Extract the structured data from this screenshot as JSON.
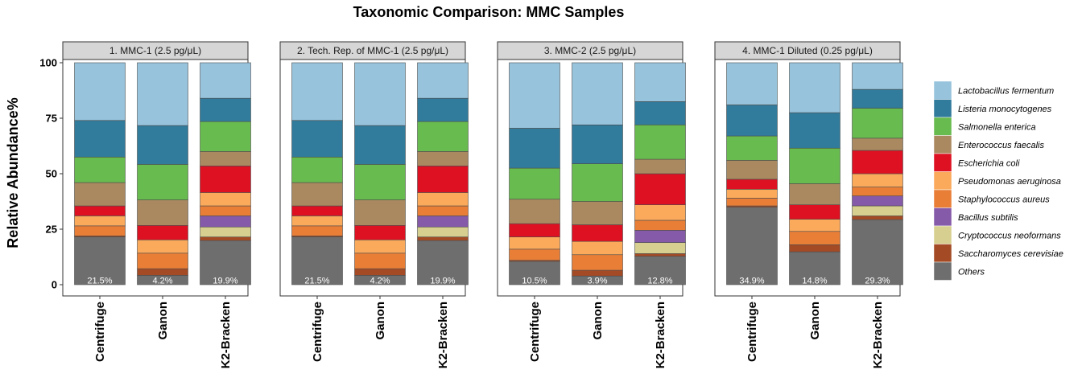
{
  "chart_data": {
    "type": "bar",
    "stacked": true,
    "title": "Taxonomic Comparison: MMC Samples",
    "ylabel": "Relative Abundance%",
    "xlabel": "",
    "ylim": [
      0,
      100
    ],
    "yticks": [
      0,
      25,
      50,
      75,
      100
    ],
    "grid": false,
    "legend_position": "right",
    "categories": [
      "Centrifuge",
      "Ganon",
      "K2-Bracken"
    ],
    "series_names": [
      "Lactobacillus fermentum",
      "Listeria monocytogenes",
      "Salmonella enterica",
      "Enterococcus faecalis",
      "Escherichia coli",
      "Pseudomonas aeruginosa",
      "Staphylococcus aureus",
      "Bacillus subtilis",
      "Cryptococcus neoformans",
      "Saccharomyces cerevisiae",
      "Others"
    ],
    "colors": {
      "Lactobacillus fermentum": "#97c3dc",
      "Listeria monocytogenes": "#317b9c",
      "Salmonella enterica": "#68bb4e",
      "Enterococcus faecalis": "#aa8960",
      "Escherichia coli": "#dd1122",
      "Pseudomonas aeruginosa": "#fba95a",
      "Staphylococcus aureus": "#e97e37",
      "Bacillus subtilis": "#855aa9",
      "Cryptococcus neoformans": "#d7cf8f",
      "Saccharomyces cerevisiae": "#a44b25",
      "Others": "#6e6e6e"
    },
    "panels": [
      {
        "strip": "1. MMC-1 (2.5 pg/μL)",
        "bars": [
          {
            "label": "Centrifuge",
            "others_label": "21.5%",
            "values": {
              "Others": 21.5,
              "Saccharomyces cerevisiae": 0.5,
              "Cryptococcus neoformans": 0,
              "Bacillus subtilis": 0,
              "Staphylococcus aureus": 4.5,
              "Pseudomonas aeruginosa": 4.5,
              "Escherichia coli": 4.5,
              "Enterococcus faecalis": 10.5,
              "Salmonella enterica": 11.5,
              "Listeria monocytogenes": 16.5,
              "Lactobacillus fermentum": 26
            }
          },
          {
            "label": "Ganon",
            "others_label": "4.2%",
            "values": {
              "Others": 4.2,
              "Saccharomyces cerevisiae": 3,
              "Cryptococcus neoformans": 0,
              "Bacillus subtilis": 0,
              "Staphylococcus aureus": 7,
              "Pseudomonas aeruginosa": 6,
              "Escherichia coli": 6.5,
              "Enterococcus faecalis": 11.5,
              "Salmonella enterica": 16,
              "Listeria monocytogenes": 17.5,
              "Lactobacillus fermentum": 28.3
            }
          },
          {
            "label": "K2-Bracken",
            "others_label": "19.9%",
            "values": {
              "Others": 19.9,
              "Saccharomyces cerevisiae": 1.6,
              "Cryptococcus neoformans": 4.5,
              "Bacillus subtilis": 5,
              "Staphylococcus aureus": 4.5,
              "Pseudomonas aeruginosa": 6,
              "Escherichia coli": 12,
              "Enterococcus faecalis": 6.5,
              "Salmonella enterica": 13.5,
              "Listeria monocytogenes": 10.5,
              "Lactobacillus fermentum": 16
            }
          }
        ]
      },
      {
        "strip": "2. Tech. Rep. of MMC-1 (2.5 pg/μL)",
        "bars": [
          {
            "label": "Centrifuge",
            "others_label": "21.5%",
            "values": {
              "Others": 21.5,
              "Saccharomyces cerevisiae": 0.5,
              "Cryptococcus neoformans": 0,
              "Bacillus subtilis": 0,
              "Staphylococcus aureus": 4.5,
              "Pseudomonas aeruginosa": 4.5,
              "Escherichia coli": 4.5,
              "Enterococcus faecalis": 10.5,
              "Salmonella enterica": 11.5,
              "Listeria monocytogenes": 16.5,
              "Lactobacillus fermentum": 26
            }
          },
          {
            "label": "Ganon",
            "others_label": "4.2%",
            "values": {
              "Others": 4.2,
              "Saccharomyces cerevisiae": 3,
              "Cryptococcus neoformans": 0,
              "Bacillus subtilis": 0,
              "Staphylococcus aureus": 7,
              "Pseudomonas aeruginosa": 6,
              "Escherichia coli": 6.5,
              "Enterococcus faecalis": 11.5,
              "Salmonella enterica": 16,
              "Listeria monocytogenes": 17.5,
              "Lactobacillus fermentum": 28.3
            }
          },
          {
            "label": "K2-Bracken",
            "others_label": "19.9%",
            "values": {
              "Others": 19.9,
              "Saccharomyces cerevisiae": 1.6,
              "Cryptococcus neoformans": 4.5,
              "Bacillus subtilis": 5,
              "Staphylococcus aureus": 4.5,
              "Pseudomonas aeruginosa": 6,
              "Escherichia coli": 12,
              "Enterococcus faecalis": 6.5,
              "Salmonella enterica": 13.5,
              "Listeria monocytogenes": 10.5,
              "Lactobacillus fermentum": 16
            }
          }
        ]
      },
      {
        "strip": "3. MMC-2 (2.5 pg/μL)",
        "bars": [
          {
            "label": "Centrifuge",
            "others_label": "10.5%",
            "values": {
              "Others": 10.5,
              "Saccharomyces cerevisiae": 0.5,
              "Cryptococcus neoformans": 0,
              "Bacillus subtilis": 0,
              "Staphylococcus aureus": 5,
              "Pseudomonas aeruginosa": 5.5,
              "Escherichia coli": 6,
              "Enterococcus faecalis": 11,
              "Salmonella enterica": 14,
              "Listeria monocytogenes": 18,
              "Lactobacillus fermentum": 29.5
            }
          },
          {
            "label": "Ganon",
            "others_label": "3.9%",
            "values": {
              "Others": 3.9,
              "Saccharomyces cerevisiae": 2.6,
              "Cryptococcus neoformans": 0,
              "Bacillus subtilis": 0,
              "Staphylococcus aureus": 7,
              "Pseudomonas aeruginosa": 6,
              "Escherichia coli": 7.5,
              "Enterococcus faecalis": 10.5,
              "Salmonella enterica": 17,
              "Listeria monocytogenes": 17.5,
              "Lactobacillus fermentum": 28
            }
          },
          {
            "label": "K2-Bracken",
            "others_label": "12.8%",
            "values": {
              "Others": 12.8,
              "Saccharomyces cerevisiae": 1.2,
              "Cryptococcus neoformans": 5,
              "Bacillus subtilis": 5.5,
              "Staphylococcus aureus": 4.5,
              "Pseudomonas aeruginosa": 7,
              "Escherichia coli": 14,
              "Enterococcus faecalis": 6.5,
              "Salmonella enterica": 15.5,
              "Listeria monocytogenes": 10.5,
              "Lactobacillus fermentum": 17.5
            }
          }
        ]
      },
      {
        "strip": "4. MMC-1 Diluted (0.25 pg/μL)",
        "bars": [
          {
            "label": "Centrifuge",
            "others_label": "34.9%",
            "values": {
              "Others": 34.9,
              "Saccharomyces cerevisiae": 0.6,
              "Cryptococcus neoformans": 0,
              "Bacillus subtilis": 0,
              "Staphylococcus aureus": 3.5,
              "Pseudomonas aeruginosa": 4,
              "Escherichia coli": 4.5,
              "Enterococcus faecalis": 8.5,
              "Salmonella enterica": 11,
              "Listeria monocytogenes": 14,
              "Lactobacillus fermentum": 19
            }
          },
          {
            "label": "Ganon",
            "others_label": "14.8%",
            "values": {
              "Others": 14.8,
              "Saccharomyces cerevisiae": 3.2,
              "Cryptococcus neoformans": 0,
              "Bacillus subtilis": 0,
              "Staphylococcus aureus": 6,
              "Pseudomonas aeruginosa": 5.5,
              "Escherichia coli": 6.5,
              "Enterococcus faecalis": 9.5,
              "Salmonella enterica": 16,
              "Listeria monocytogenes": 16,
              "Lactobacillus fermentum": 22.5
            }
          },
          {
            "label": "K2-Bracken",
            "others_label": "29.3%",
            "values": {
              "Others": 29.3,
              "Saccharomyces cerevisiae": 1.7,
              "Cryptococcus neoformans": 4.5,
              "Bacillus subtilis": 4.5,
              "Staphylococcus aureus": 4,
              "Pseudomonas aeruginosa": 6,
              "Escherichia coli": 10.5,
              "Enterococcus faecalis": 5.5,
              "Salmonella enterica": 13.5,
              "Listeria monocytogenes": 8.5,
              "Lactobacillus fermentum": 12
            }
          }
        ]
      }
    ]
  }
}
